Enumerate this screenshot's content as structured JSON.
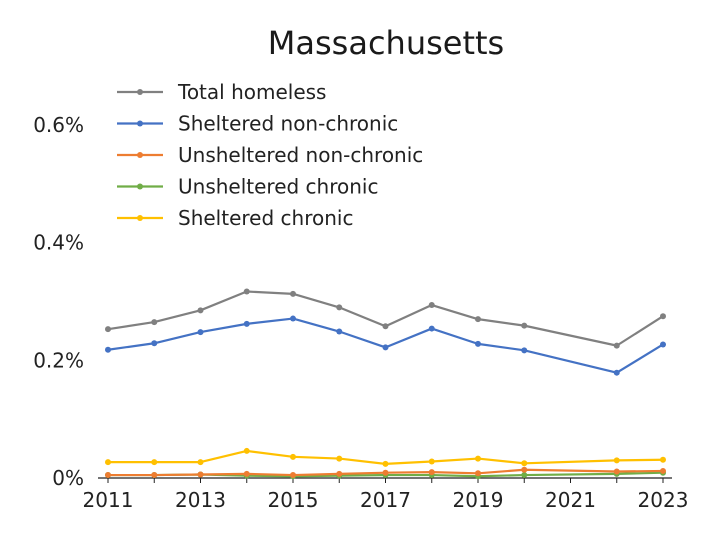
{
  "chart_data": {
    "type": "line",
    "title": "Massachusetts",
    "xlabel": "",
    "ylabel": "",
    "x": [
      2011,
      2012,
      2013,
      2014,
      2015,
      2016,
      2017,
      2018,
      2019,
      2020,
      2022,
      2023
    ],
    "xticks": [
      2011,
      2013,
      2015,
      2017,
      2019,
      2021,
      2023
    ],
    "xtick_labels": [
      "2011",
      "2013",
      "2015",
      "2017",
      "2019",
      "2021",
      "2023"
    ],
    "xlim": [
      2011,
      2023
    ],
    "ylim": [
      0,
      0.6
    ],
    "yticks": [
      0,
      0.2,
      0.4,
      0.6
    ],
    "ytick_labels": [
      "0%",
      "0.2%",
      "0.4%",
      "0.6%"
    ],
    "grid": false,
    "legend_position": "top-left",
    "series": [
      {
        "name": "Total homeless",
        "color": "#808080",
        "values": [
          0.253,
          0.265,
          0.285,
          0.317,
          0.313,
          0.29,
          0.258,
          0.294,
          0.27,
          0.259,
          0.225,
          0.275
        ]
      },
      {
        "name": "Sheltered non-chronic",
        "color": "#4472C4",
        "values": [
          0.218,
          0.229,
          0.248,
          0.262,
          0.271,
          0.249,
          0.222,
          0.254,
          0.228,
          0.217,
          0.179,
          0.227
        ]
      },
      {
        "name": "Unsheltered non-chronic",
        "color": "#ED7D31",
        "values": [
          0.005,
          0.005,
          0.006,
          0.007,
          0.005,
          0.007,
          0.009,
          0.01,
          0.008,
          0.014,
          0.011,
          0.012
        ]
      },
      {
        "name": "Unsheltered chronic",
        "color": "#70AD47",
        "values": [
          0.005,
          0.005,
          0.006,
          0.004,
          0.003,
          0.004,
          0.005,
          0.005,
          0.003,
          0.005,
          0.007,
          0.009
        ]
      },
      {
        "name": "Sheltered chronic",
        "color": "#FFC000",
        "values": [
          0.027,
          0.027,
          0.027,
          0.046,
          0.036,
          0.033,
          0.024,
          0.028,
          0.033,
          0.025,
          0.03,
          0.031
        ]
      }
    ]
  }
}
